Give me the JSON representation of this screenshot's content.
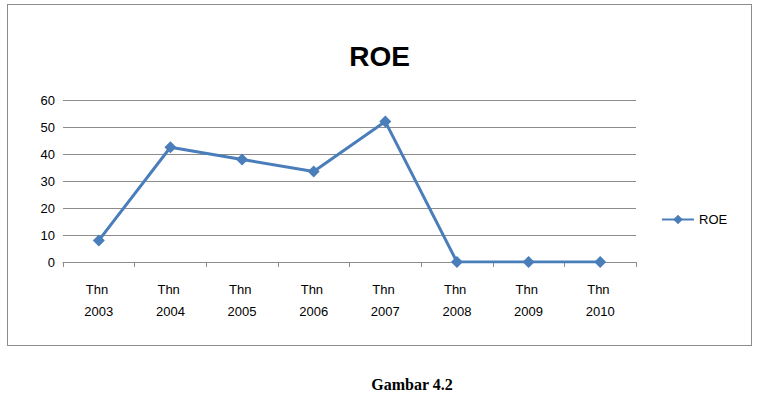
{
  "chart_data": {
    "type": "line",
    "title": "ROE",
    "caption": "Gambar 4.2",
    "categories": [
      "Thn 2003",
      "Thn 2004",
      "Thn 2005",
      "Thn 2006",
      "Thn 2007",
      "Thn 2008",
      "Thn 2009",
      "Thn 2010"
    ],
    "series": [
      {
        "name": "ROE",
        "color": "#4a7ebb",
        "marker": "diamond",
        "line_style": "solid",
        "values": [
          8,
          42.5,
          38,
          33.5,
          52,
          0,
          0,
          0
        ]
      }
    ],
    "ylim": [
      0,
      60
    ],
    "yticks": [
      0,
      10,
      20,
      30,
      40,
      50,
      60
    ],
    "grid": true,
    "legend": "right"
  }
}
